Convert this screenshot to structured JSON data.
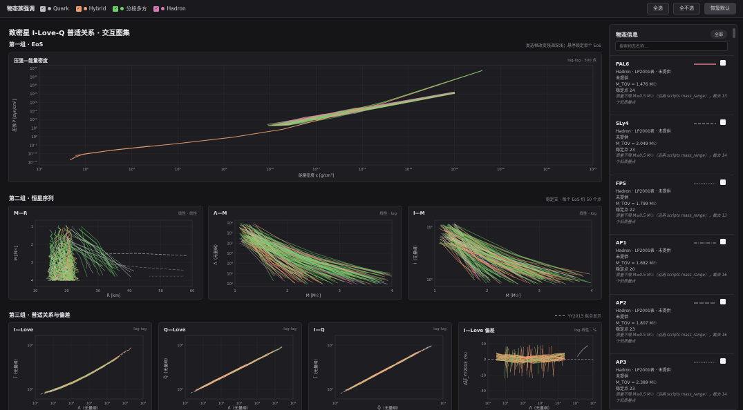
{
  "topbar": {
    "label": "物态族强调",
    "families": [
      {
        "name": "Quark",
        "color": "#b8b8bc"
      },
      {
        "name": "Hybrid",
        "color": "#f0a070"
      },
      {
        "name": "分段多方",
        "color": "#6fcf6a"
      },
      {
        "name": "Hadron",
        "color": "#d77ab6"
      }
    ],
    "buttons": {
      "select_all": "全选",
      "select_none": "全不选",
      "reset": "恢复默认"
    }
  },
  "page": {
    "title": "致密星 I-Love-Q 普适关系 · 交互图集"
  },
  "sections": {
    "eos": {
      "title": "第一组 · EoS",
      "note": "复选框改变强调深浅；悬停锁定单个 EoS"
    },
    "stars": {
      "title": "第二组 · 恒星序列",
      "note": "稳定支 · 每个 EoS 约 50 个点"
    },
    "universal": {
      "title": "第三组 · 普适关系与偏差",
      "note": "YY2013 拟合显示"
    }
  },
  "panels": {
    "pe": {
      "title": "压强—能量密度",
      "sub": "log-log · 300 点"
    },
    "mr": {
      "title": "M—R",
      "sub": "线性 · 线性"
    },
    "lm": {
      "title": "Λ—M",
      "sub": "线性 · log"
    },
    "im": {
      "title": "I—M",
      "sub": "线性 · log"
    },
    "ilove": {
      "title": "I—Love",
      "sub": "log-log"
    },
    "qlove": {
      "title": "Q—Love",
      "sub": "log-log"
    },
    "iq": {
      "title": "I—Q",
      "sub": "log-log"
    },
    "dev": {
      "title": "I—Love 偏差",
      "sub": "log-线性 · %"
    }
  },
  "sidebar": {
    "title": "物态信息",
    "all_label": "全部",
    "search_placeholder": "搜索物态名称…",
    "items": [
      {
        "name": "PAL6",
        "line1": "Hadron · LP2001表 · 未提供",
        "line2": "未提供",
        "mtov": "M_TOV = 1.476 M☉",
        "stable": "稳定点 24",
        "warn": "质量下限 M≥0.5 M☉（沿用 scripts mass_range），截去 13 个低质量点",
        "style": "solid",
        "color": "#e07a8a"
      },
      {
        "name": "SLy4",
        "line1": "Hadron · LP2001表 · 未提供",
        "line2": "未提供",
        "mtov": "M_TOV = 2.049 M☉",
        "stable": "稳定点 23",
        "warn": "质量下限 M≥0.5 M☉（沿用 scripts mass_range），截去 14 个低质量点",
        "style": "dashed",
        "color": "#9a9aa2"
      },
      {
        "name": "FPS",
        "line1": "Hadron · LP2001表 · 未提供",
        "line2": "未提供",
        "mtov": "M_TOV = 1.799 M☉",
        "stable": "稳定点 22",
        "warn": "质量下限 M≥0.5 M☉（沿用 scripts mass_range），截去 13 个低质量点",
        "style": "dotted",
        "color": "#9a9aa2"
      },
      {
        "name": "AP1",
        "line1": "Hadron · LP2001表 · 未提供",
        "line2": "未提供",
        "mtov": "M_TOV = 1.682 M☉",
        "stable": "稳定点 20",
        "warn": "质量下限 M≥0.5 M☉（沿用 scripts mass_range），截去 16 个低质量点",
        "style": "dashdot",
        "color": "#9a9aa2"
      },
      {
        "name": "AP2",
        "line1": "Hadron · LP2001表 · 未提供",
        "line2": "未提供",
        "mtov": "M_TOV = 1.807 M☉",
        "stable": "稳定点 23",
        "warn": "质量下限 M≥0.5 M☉（沿用 scripts mass_range），截去 16 个低质量点",
        "style": "longdash",
        "color": "#9a9aa2"
      },
      {
        "name": "AP3",
        "line1": "Hadron · LP2001表 · 未提供",
        "line2": "未提供",
        "mtov": "M_TOV = 2.389 M☉",
        "stable": "稳定点 23",
        "warn": "质量下限 M≥0.5 M☉（沿用 scripts mass_range），截去 14 个低质量点",
        "style": "dotted",
        "color": "#9a9aa2"
      }
    ]
  },
  "chart_data": [
    {
      "type": "line",
      "panel": "压强—能量密度",
      "scale": "log-log",
      "xlabel": "能量密度 ε [g/cm³]",
      "ylabel": "压强 P [dyn/cm²]",
      "xlim": [
        1.0,
        1e+24
      ],
      "ylim": [
        1e-18,
        1e+40
      ],
      "x_ticks": [
        "10⁰",
        "10²",
        "10⁴",
        "10⁶",
        "10⁸",
        "10¹⁰",
        "10¹²",
        "10¹⁴",
        "10¹⁶",
        "10¹⁸",
        "10²⁰",
        "10²²",
        "10²⁴"
      ],
      "y_ticks": [
        "10⁴⁰",
        "10³⁵",
        "10³⁰",
        "10²⁵",
        "10²⁰",
        "10¹⁵",
        "10¹⁰",
        "10⁵",
        "10⁰",
        "10⁻⁵",
        "10⁻¹⁰",
        "10⁻¹⁵"
      ],
      "series_count": 50
    },
    {
      "type": "line",
      "panel": "M—R",
      "xlabel": "R [km]",
      "ylabel": "M [M☉]",
      "xlim": [
        5,
        60
      ],
      "ylim": [
        0,
        4.5
      ],
      "x_ticks": [
        "10",
        "20",
        "30",
        "40",
        "50",
        "60"
      ],
      "y_ticks": [
        "1",
        "2",
        "3",
        "4"
      ]
    },
    {
      "type": "line",
      "panel": "Λ—M",
      "xlabel": "M [M☉]",
      "ylabel": "Λ̄（无量纲）",
      "xlim": [
        0.5,
        4.2
      ],
      "scale_y": "log",
      "x_ticks": [
        "1",
        "2",
        "3",
        "4"
      ],
      "y_ticks": [
        "10⁰",
        "10¹",
        "10²",
        "10³",
        "10⁴",
        "10⁵",
        "10⁶"
      ]
    },
    {
      "type": "line",
      "panel": "I—M",
      "xlabel": "M [M☉]",
      "ylabel": "Ī（无量纲）",
      "xlim": [
        0.5,
        4.2
      ],
      "scale_y": "log",
      "x_ticks": [
        "1",
        "2",
        "3",
        "4"
      ],
      "y_ticks": [
        "10¹",
        "10²"
      ]
    },
    {
      "type": "line",
      "panel": "I—Love",
      "scale": "log-log",
      "xlabel": "Λ̄（无量纲）",
      "ylabel": "Ī（无量纲）",
      "x_ticks": [
        "10⁰",
        "10¹",
        "10²",
        "10³",
        "10⁴",
        "10⁵",
        "10⁶"
      ],
      "y_ticks": [
        "10¹",
        "10²"
      ]
    },
    {
      "type": "line",
      "panel": "Q—Love",
      "scale": "log-log",
      "xlabel": "Λ̄（无量纲）",
      "ylabel": "Q̄（无量纲）",
      "x_ticks": [
        "10⁰",
        "10¹",
        "10²",
        "10³",
        "10⁴",
        "10⁵",
        "10⁶"
      ],
      "y_ticks": [
        "10⁰",
        "10¹"
      ]
    },
    {
      "type": "line",
      "panel": "I—Q",
      "scale": "log-log",
      "xlabel": "Q̄（无量纲）",
      "ylabel": "Ī（无量纲）",
      "x_ticks": [
        "10⁰",
        "10¹"
      ],
      "y_ticks": [
        "10¹",
        "10²"
      ]
    },
    {
      "type": "line",
      "panel": "I—Love 偏差",
      "xlabel": "Λ̄（无量纲）",
      "ylabel": "ΔĪ/Ī_YY2013（%）",
      "x_ticks": [
        "10⁰",
        "10¹",
        "10²",
        "10³",
        "10⁴",
        "10⁵",
        "10⁶"
      ],
      "y_ticks": [
        "20",
        "0",
        "-20",
        "-40"
      ],
      "reference": "YY2013 拟合"
    }
  ]
}
